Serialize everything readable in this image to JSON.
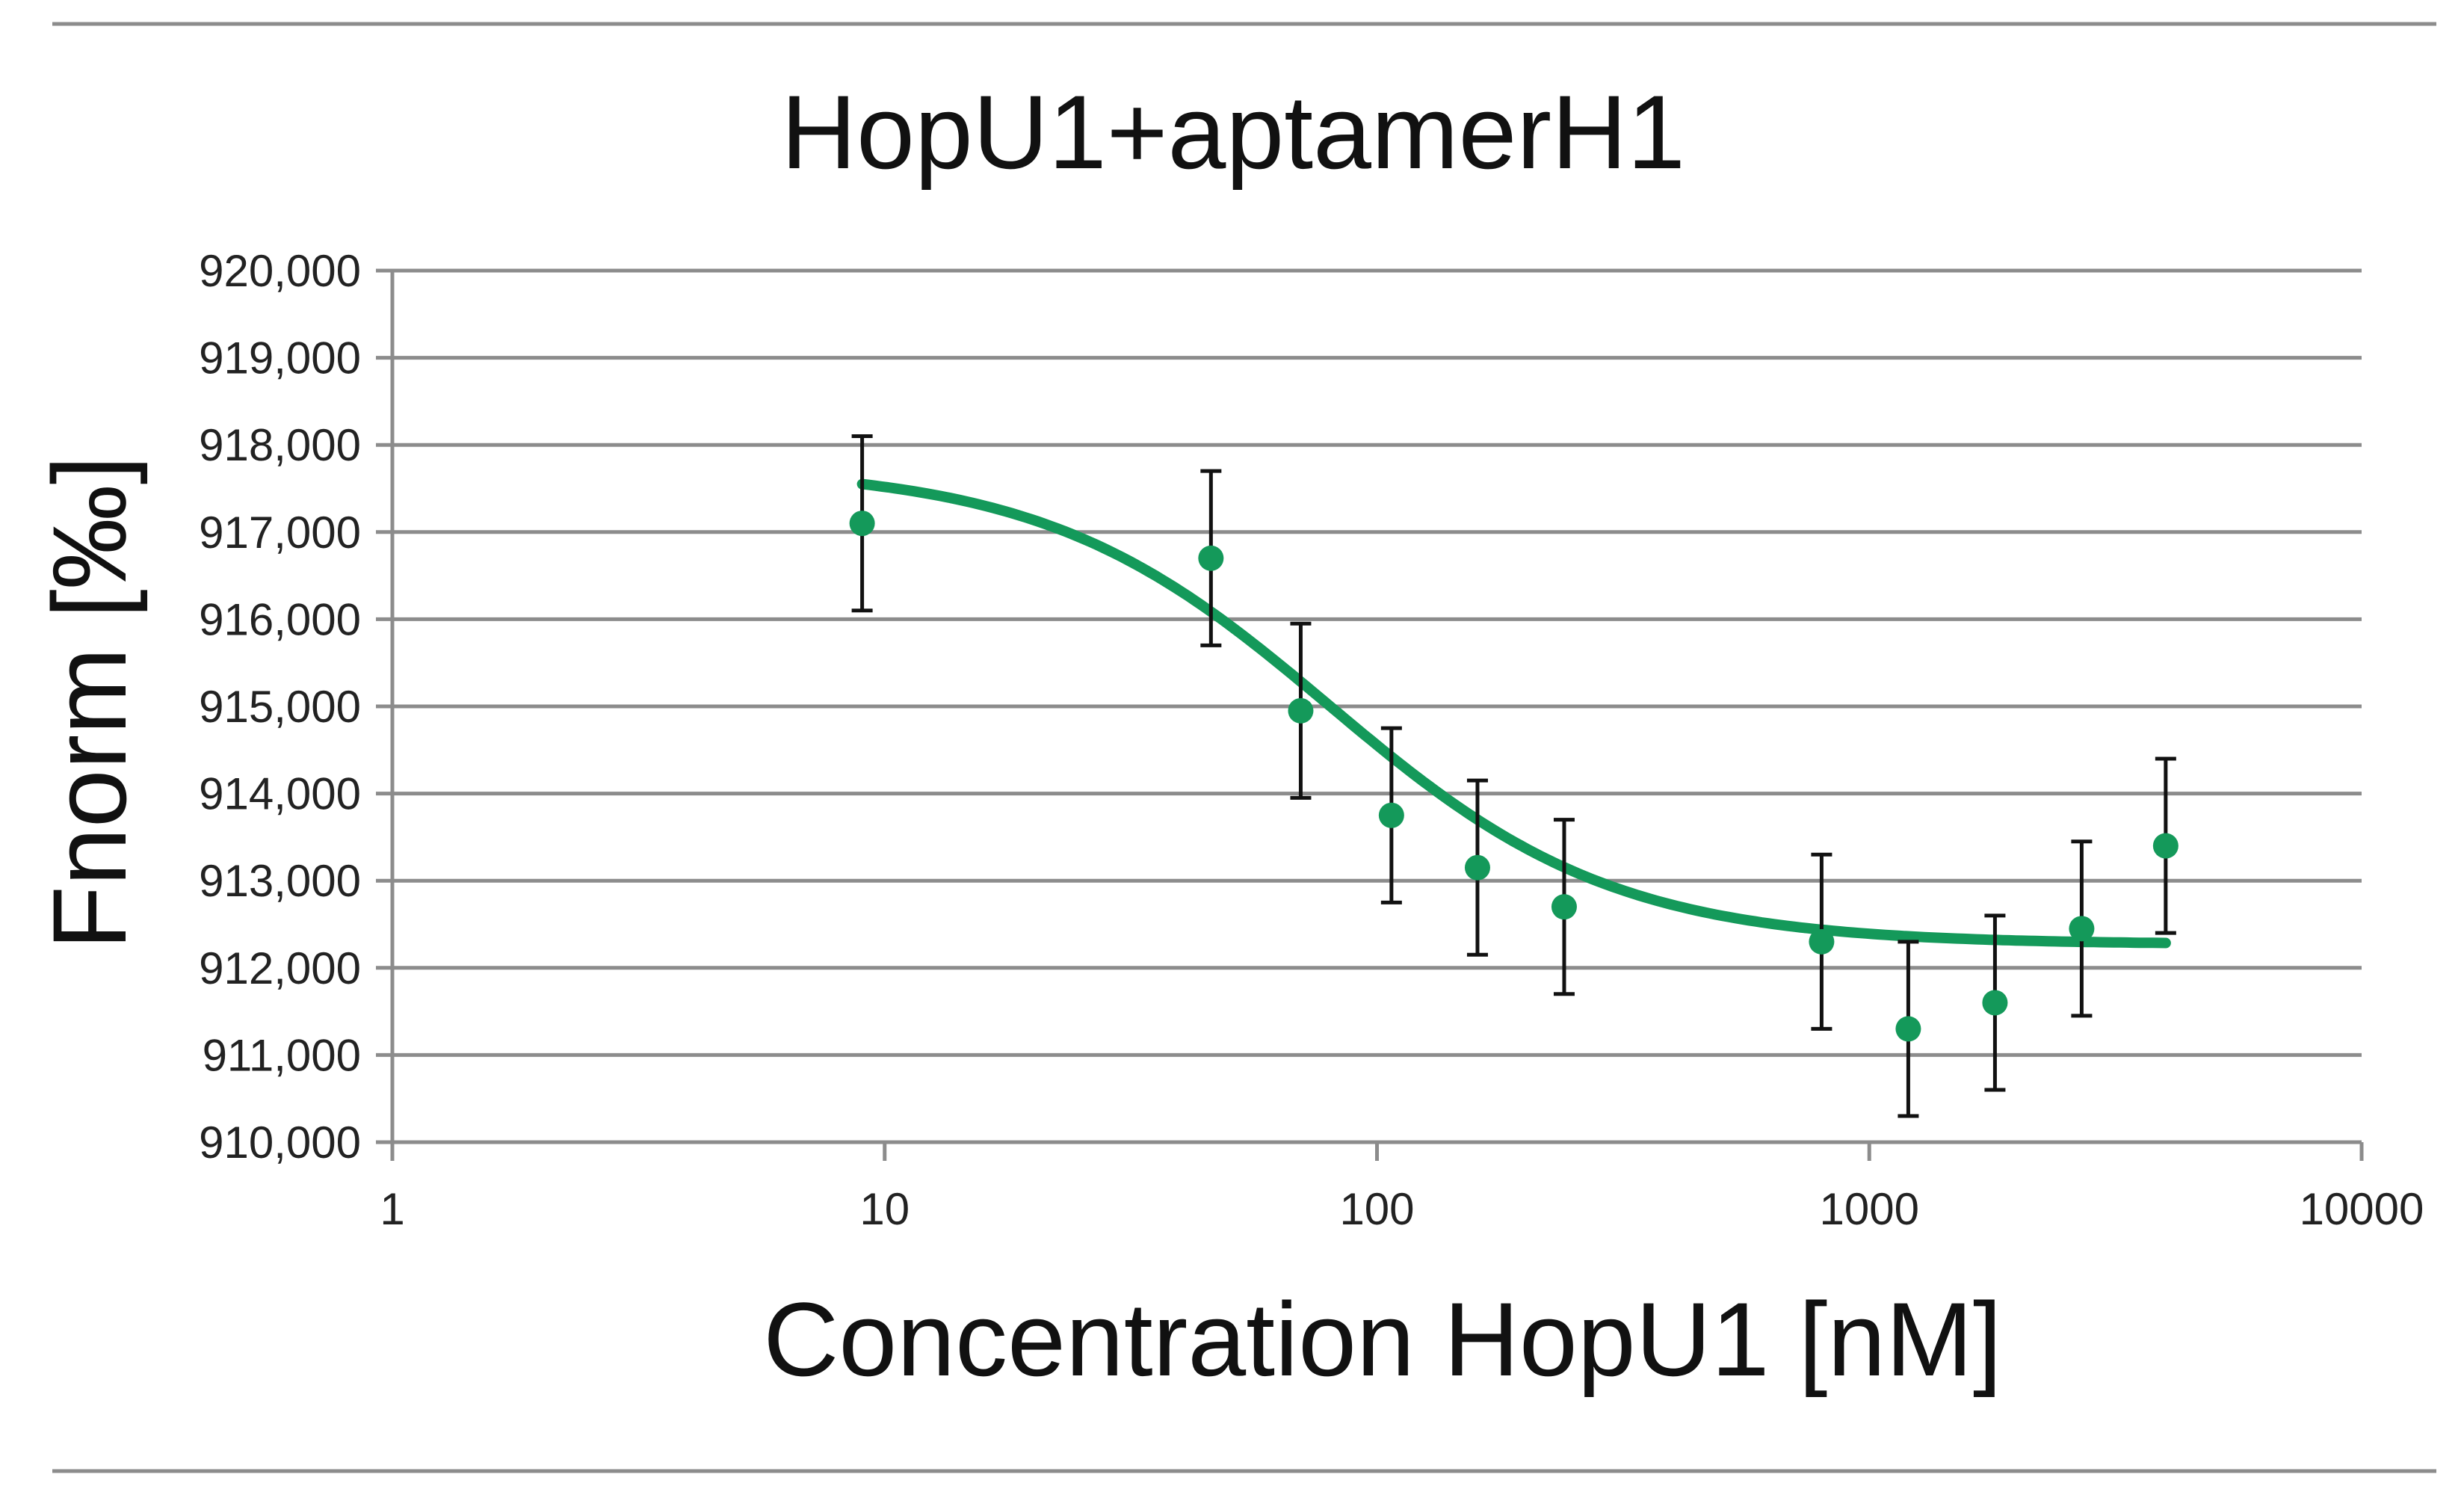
{
  "chart_data": {
    "type": "scatter",
    "title": "HopU1+aptamerH1",
    "xlabel": "Concentration HopU1 [nM]",
    "ylabel": "Fnorm [‰]",
    "x_scale": "log",
    "xlim": [
      1,
      10000
    ],
    "ylim": [
      910000,
      920000
    ],
    "x_ticks": [
      1,
      10,
      100,
      1000,
      10000
    ],
    "x_tick_labels": [
      "1",
      "10",
      "100",
      "1000",
      "10000"
    ],
    "y_ticks": [
      910000,
      911000,
      912000,
      913000,
      914000,
      915000,
      916000,
      917000,
      918000,
      919000,
      920000
    ],
    "y_tick_labels": [
      "910,000",
      "911,000",
      "912,000",
      "913,000",
      "914,000",
      "915,000",
      "916,000",
      "917,000",
      "918,000",
      "919,000",
      "920,000"
    ],
    "grid": true,
    "legend": "none",
    "colors": {
      "points": "#14995a",
      "fit": "#14995a",
      "error_bars": "#111111",
      "grid": "#8c8c8c",
      "frame_lines": "#8c8c8c"
    },
    "series": [
      {
        "kind": "points_with_error",
        "x": [
          9,
          46,
          70,
          107,
          160,
          240,
          800,
          1200,
          1800,
          2700,
          4000
        ],
        "y": [
          917100,
          916700,
          914950,
          913750,
          913150,
          912700,
          912300,
          911300,
          911600,
          912450,
          913400
        ],
        "error": [
          1000,
          1000,
          1000,
          1000,
          1000,
          1000,
          1000,
          1000,
          1000,
          1000,
          1000
        ]
      },
      {
        "kind": "fit_curve",
        "fit": {
          "model": "binding",
          "top": 917750,
          "bottom": 912270,
          "kd": 80,
          "hill": 1.5,
          "x_range": [
            9,
            4000
          ]
        }
      }
    ]
  }
}
